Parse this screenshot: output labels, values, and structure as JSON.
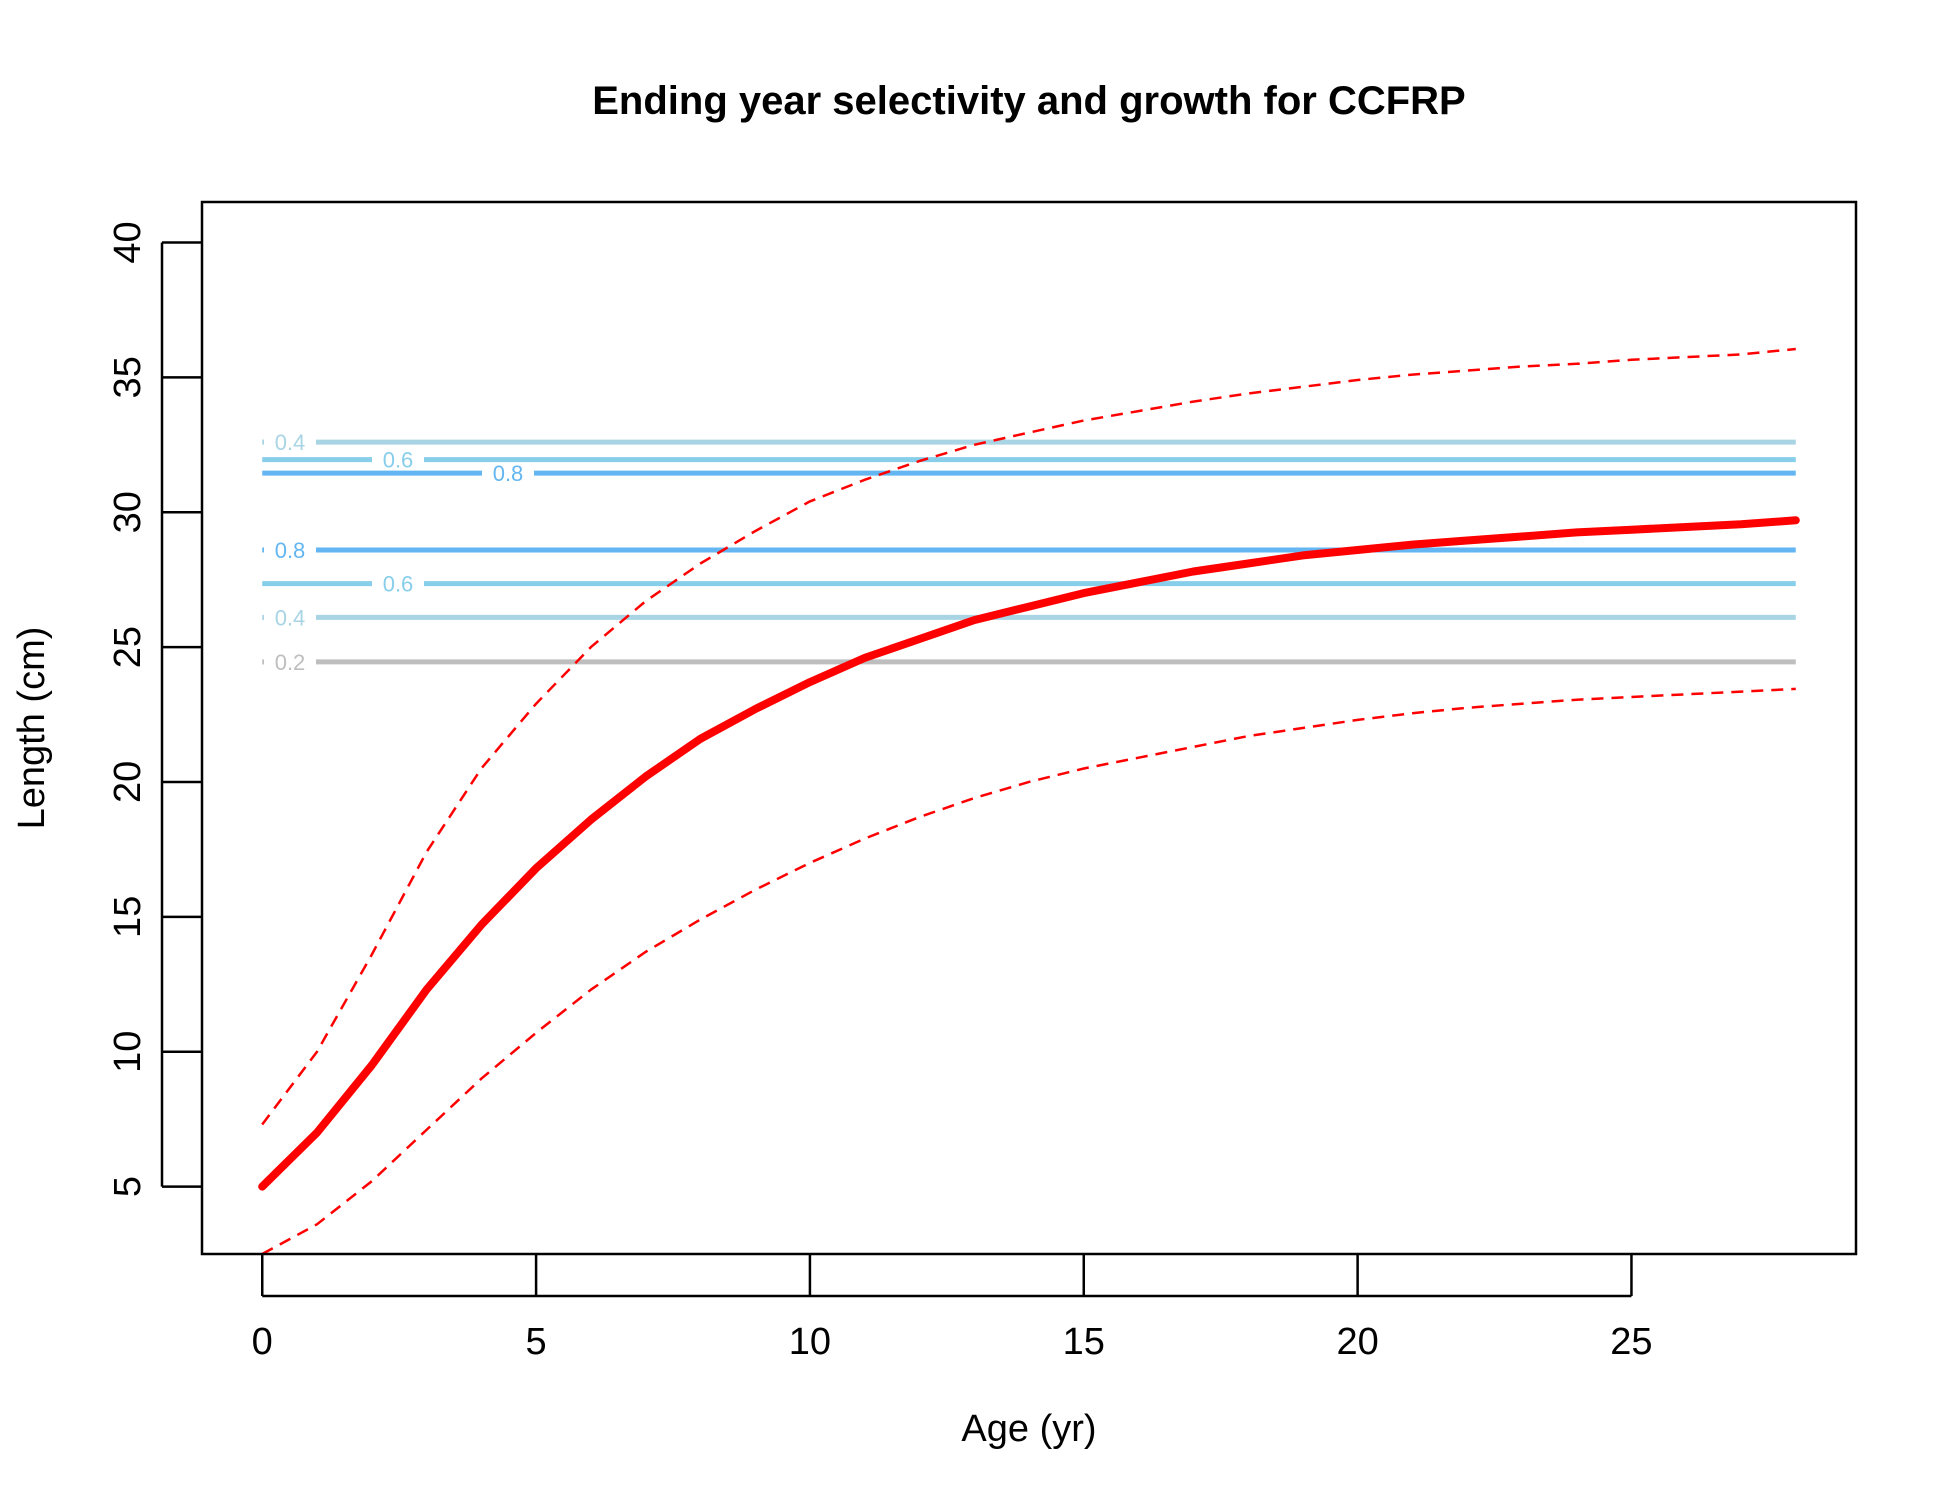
{
  "chart_data": {
    "type": "line",
    "title": "Ending year selectivity and growth for CCFRP",
    "xlabel": "Age (yr)",
    "ylabel": "Length (cm)",
    "xlim": [
      -1.1,
      29.1
    ],
    "ylim": [
      2.5,
      41.5
    ],
    "xticks": [
      0,
      5,
      10,
      15,
      20,
      25
    ],
    "yticks": [
      5,
      10,
      15,
      20,
      25,
      30,
      35,
      40
    ],
    "grid": false,
    "series": [
      {
        "style": "solid",
        "color": "#ff0000",
        "x": [
          0,
          1,
          2,
          3,
          4,
          5,
          6,
          7,
          8,
          9,
          10,
          11,
          12,
          13,
          14,
          15,
          16,
          17,
          18,
          19,
          20,
          21,
          22,
          23,
          24,
          25,
          26,
          27,
          28
        ],
        "y": [
          5.0,
          7.0,
          9.5,
          12.3,
          14.7,
          16.8,
          18.6,
          20.2,
          21.6,
          22.7,
          23.7,
          24.6,
          25.3,
          26.0,
          26.5,
          27.0,
          27.4,
          27.8,
          28.1,
          28.4,
          28.6,
          28.8,
          28.95,
          29.1,
          29.25,
          29.35,
          29.45,
          29.55,
          29.7
        ]
      },
      {
        "style": "dashed",
        "color": "#ff0000",
        "x": [
          0,
          1,
          2,
          3,
          4,
          5,
          6,
          7,
          8,
          9,
          10,
          11,
          12,
          13,
          14,
          15,
          16,
          17,
          18,
          19,
          20,
          21,
          22,
          23,
          24,
          25,
          26,
          27,
          28
        ],
        "y": [
          7.3,
          10.0,
          13.6,
          17.4,
          20.5,
          22.9,
          25.0,
          26.7,
          28.1,
          29.3,
          30.4,
          31.2,
          31.9,
          32.5,
          32.95,
          33.4,
          33.75,
          34.1,
          34.4,
          34.65,
          34.9,
          35.1,
          35.25,
          35.4,
          35.5,
          35.65,
          35.75,
          35.85,
          36.05
        ]
      },
      {
        "style": "dashed",
        "color": "#ff0000",
        "x": [
          0,
          1,
          2,
          3,
          4,
          5,
          6,
          7,
          8,
          9,
          10,
          11,
          12,
          13,
          14,
          15,
          16,
          17,
          18,
          19,
          20,
          21,
          22,
          23,
          24,
          25,
          26,
          27,
          28
        ],
        "y": [
          2.5,
          3.6,
          5.2,
          7.1,
          9.0,
          10.7,
          12.3,
          13.7,
          14.9,
          16.0,
          17.0,
          17.9,
          18.7,
          19.4,
          20.0,
          20.5,
          20.9,
          21.3,
          21.7,
          22.0,
          22.3,
          22.55,
          22.75,
          22.9,
          23.05,
          23.15,
          23.25,
          23.35,
          23.45
        ]
      }
    ],
    "contours": [
      {
        "label": "0.2",
        "y": 24.45,
        "color": "#bebebe"
      },
      {
        "label": "0.4",
        "y": 26.1,
        "color": "#a8d4e4"
      },
      {
        "label": "0.6",
        "y": 27.35,
        "color": "#87ceeb"
      },
      {
        "label": "0.8",
        "y": 28.6,
        "color": "#63b6f2"
      },
      {
        "label": "0.8",
        "y": 31.45,
        "color": "#63b6f2"
      },
      {
        "label": "0.6",
        "y": 31.95,
        "color": "#87ceeb"
      },
      {
        "label": "0.4",
        "y": 32.6,
        "color": "#a8d4e4"
      }
    ]
  }
}
